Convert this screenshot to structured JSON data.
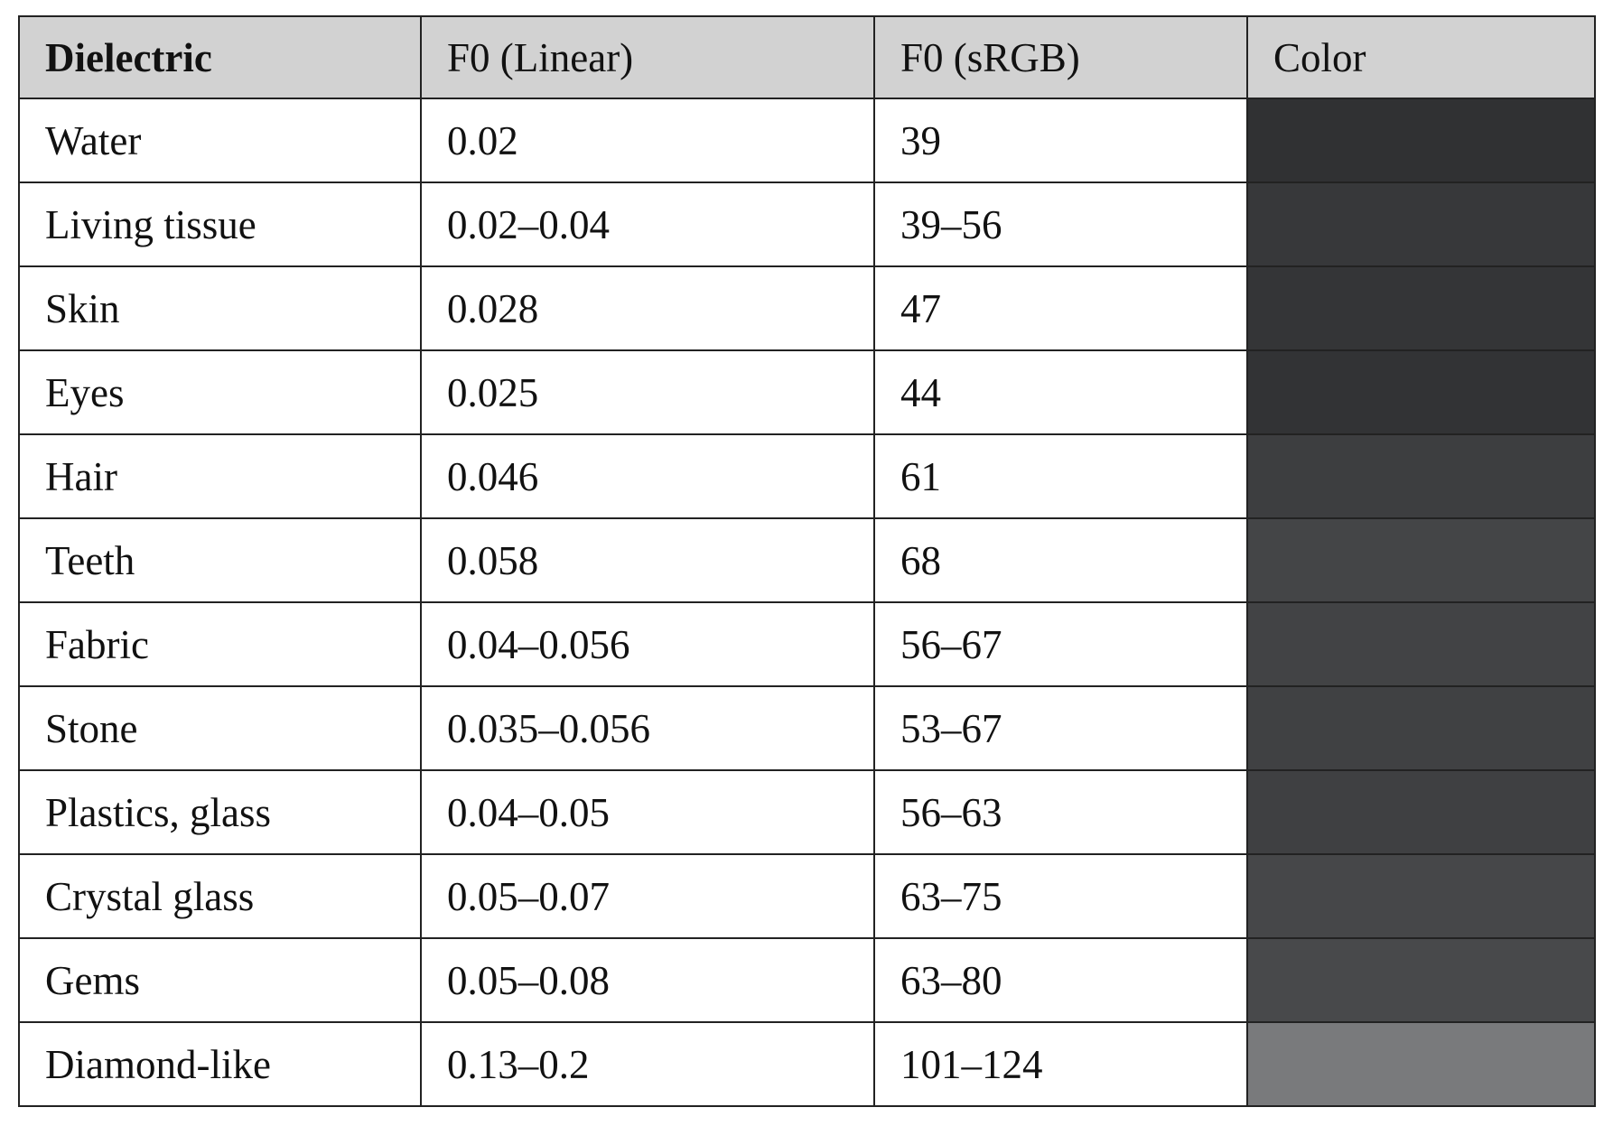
{
  "table": {
    "header": [
      "Dielectric",
      "F0 (Linear)",
      "F0 (sRGB)",
      "Color"
    ],
    "rows": [
      [
        "Water",
        "0.02",
        "39"
      ],
      [
        "Living tissue",
        "0.02–0.04",
        "39–56"
      ],
      [
        "Skin",
        "0.028",
        "47"
      ],
      [
        "Eyes",
        "0.025",
        "44"
      ],
      [
        "Hair",
        "0.046",
        "61"
      ],
      [
        "Teeth",
        "0.058",
        "68"
      ],
      [
        "Fabric",
        "0.04–0.056",
        "56–67"
      ],
      [
        "Stone",
        "0.035–0.056",
        "53–67"
      ],
      [
        "Plastics, glass",
        "0.04–0.05",
        "56–63"
      ],
      [
        "Crystal glass",
        "0.05–0.07",
        "63–75"
      ],
      [
        "Gems",
        "0.05–0.08",
        "63–80"
      ],
      [
        "Diamond-like",
        "0.13–0.2",
        "101–124"
      ]
    ],
    "row_colors": [
      "#303133",
      "#37383a",
      "#343537",
      "#323335",
      "#3d3e40",
      "#444547",
      "#424345",
      "#404143",
      "#3f4042",
      "#464749",
      "#48494b",
      "#797a7c"
    ]
  }
}
